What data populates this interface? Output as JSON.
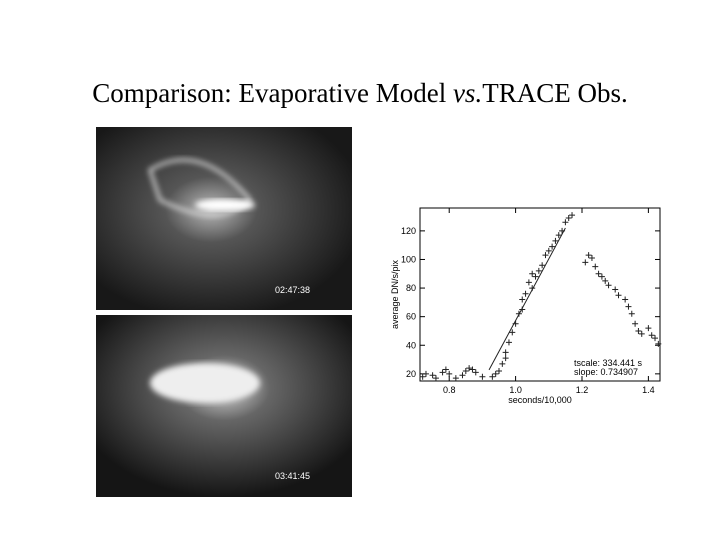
{
  "header": {
    "title": {
      "before": "Comparison: Evaporative Model",
      "italic": "vs.",
      "after": "TRACE Obs."
    }
  },
  "images": [
    {
      "timestamp": "02:47:38"
    },
    {
      "timestamp": "03:41:45"
    }
  ],
  "chart_data": {
    "type": "scatter",
    "xlabel": "seconds/10,000",
    "ylabel": "average DN/s/pix",
    "xlim": [
      0.712,
      1.435
    ],
    "ylim": [
      15,
      136
    ],
    "xticks": [
      0.8,
      {
        "value": 1,
        "label": "1.0"
      },
      1.2,
      1.4
    ],
    "yticks": [
      20,
      40,
      60,
      80,
      100,
      120
    ],
    "annotations": [
      "tscale: 334.441 s",
      "slope: 0.734907"
    ],
    "series": [
      {
        "color": "#222222",
        "marker": "plus",
        "x": [
          0.72,
          0.73,
          0.75,
          0.76,
          0.78,
          0.79,
          0.8,
          0.82,
          0.84,
          0.85,
          0.86,
          0.87,
          0.88,
          0.9,
          0.93,
          0.94,
          0.95,
          0.96,
          0.97,
          0.97,
          0.98,
          0.99,
          1.0,
          1.01,
          1.02,
          1.02,
          1.03,
          1.04,
          1.05,
          1.05,
          1.06,
          1.07,
          1.08,
          1.09,
          1.1,
          1.11,
          1.12,
          1.13,
          1.14,
          1.15,
          1.16,
          1.17,
          1.21,
          1.22,
          1.23,
          1.24,
          1.25,
          1.26,
          1.27,
          1.28,
          1.3,
          1.31,
          1.33,
          1.34,
          1.35,
          1.36,
          1.37,
          1.38,
          1.4,
          1.41,
          1.42,
          1.43
        ],
        "y": [
          18,
          20,
          19,
          17,
          21,
          23,
          20,
          17,
          19,
          22,
          24,
          23,
          21,
          18,
          18,
          20,
          22,
          27,
          31,
          35,
          42,
          49,
          55,
          62,
          65,
          72,
          76,
          84,
          90,
          80,
          88,
          92,
          96,
          103,
          106,
          109,
          113,
          117,
          120,
          126,
          129,
          131,
          98,
          103,
          101,
          95,
          90,
          88,
          85,
          82,
          79,
          75,
          72,
          67,
          62,
          55,
          50,
          48,
          52,
          47,
          45,
          41
        ]
      },
      {
        "color": "#222222",
        "marker": "line",
        "x": [
          0.92,
          1.15
        ],
        "y": [
          22.8,
          122
        ]
      }
    ]
  }
}
